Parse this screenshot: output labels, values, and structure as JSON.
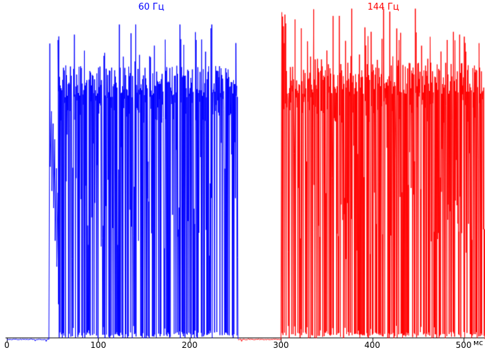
{
  "chart_data": {
    "type": "line",
    "title": "",
    "xlabel": "мс",
    "xlim_ms": [
      0,
      523
    ],
    "x_ticks_ms": [
      0,
      100,
      200,
      300,
      400,
      500
    ],
    "ylim": [
      0,
      1.05
    ],
    "grid": false,
    "background": "#ffffff",
    "axis_color": "#000000",
    "seed": 11,
    "series": [
      {
        "name": "60 Гц",
        "color": "#0000ff",
        "quiet_start_ms": 0,
        "transient_start_ms": 47,
        "burst_start_ms": 56,
        "burst_end_ms": 253,
        "frequency_hz": 60,
        "plateau_level": 0.81,
        "peak_level": 0.99,
        "baseline_level": 0.0,
        "title_x_ms": 158,
        "start_boost": false
      },
      {
        "name": "144 Гц",
        "color": "#ff0000",
        "quiet_start_ms": 253,
        "transient_start_ms": 301,
        "burst_start_ms": 301,
        "burst_end_ms": 523,
        "frequency_hz": 144,
        "plateau_level": 0.82,
        "peak_level": 1.04,
        "baseline_level": 0.0,
        "title_x_ms": 412,
        "start_boost": true
      }
    ]
  }
}
